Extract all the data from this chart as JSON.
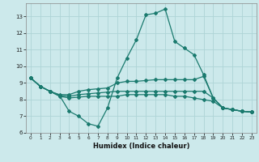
{
  "xlabel": "Humidex (Indice chaleur)",
  "background_color": "#cce9eb",
  "grid_color": "#aed4d6",
  "line_color": "#1a7a6e",
  "xlim": [
    -0.5,
    23.5
  ],
  "ylim": [
    6,
    13.8
  ],
  "xticks": [
    0,
    1,
    2,
    3,
    4,
    5,
    6,
    7,
    8,
    9,
    10,
    11,
    12,
    13,
    14,
    15,
    16,
    17,
    18,
    19,
    20,
    21,
    22,
    23
  ],
  "yticks": [
    6,
    7,
    8,
    9,
    10,
    11,
    12,
    13
  ],
  "curve1_x": [
    0,
    1,
    2,
    3,
    4,
    5,
    6,
    7,
    8,
    9,
    10,
    11,
    12,
    13,
    14,
    15,
    16,
    17,
    18,
    19,
    20,
    21,
    22,
    23
  ],
  "curve1_y": [
    9.3,
    8.8,
    8.5,
    8.25,
    7.3,
    7.0,
    6.55,
    6.4,
    7.5,
    9.3,
    10.5,
    11.6,
    13.1,
    13.2,
    13.45,
    11.5,
    11.1,
    10.7,
    9.5,
    8.1,
    7.5,
    7.4,
    7.3,
    7.25
  ],
  "curve2_x": [
    0,
    1,
    2,
    3,
    4,
    5,
    6,
    7,
    8,
    9,
    10,
    11,
    12,
    13,
    14,
    15,
    16,
    17,
    18,
    19,
    20,
    21,
    22,
    23
  ],
  "curve2_y": [
    9.3,
    8.8,
    8.5,
    8.3,
    8.3,
    8.5,
    8.6,
    8.65,
    8.7,
    9.0,
    9.1,
    9.1,
    9.15,
    9.2,
    9.2,
    9.2,
    9.2,
    9.2,
    9.4,
    8.1,
    7.5,
    7.4,
    7.3,
    7.25
  ],
  "curve3_x": [
    0,
    1,
    2,
    3,
    4,
    5,
    6,
    7,
    8,
    9,
    10,
    11,
    12,
    13,
    14,
    15,
    16,
    17,
    18,
    19,
    20,
    21,
    22,
    23
  ],
  "curve3_y": [
    9.3,
    8.8,
    8.5,
    8.25,
    8.2,
    8.3,
    8.35,
    8.4,
    8.45,
    8.5,
    8.5,
    8.5,
    8.5,
    8.5,
    8.5,
    8.5,
    8.5,
    8.5,
    8.5,
    8.1,
    7.5,
    7.4,
    7.3,
    7.25
  ],
  "curve4_x": [
    0,
    1,
    2,
    3,
    4,
    5,
    6,
    7,
    8,
    9,
    10,
    11,
    12,
    13,
    14,
    15,
    16,
    17,
    18,
    19,
    20,
    21,
    22,
    23
  ],
  "curve4_y": [
    9.3,
    8.8,
    8.5,
    8.2,
    8.1,
    8.15,
    8.2,
    8.2,
    8.2,
    8.2,
    8.3,
    8.3,
    8.3,
    8.3,
    8.3,
    8.2,
    8.2,
    8.1,
    8.0,
    7.9,
    7.5,
    7.4,
    7.3,
    7.25
  ]
}
